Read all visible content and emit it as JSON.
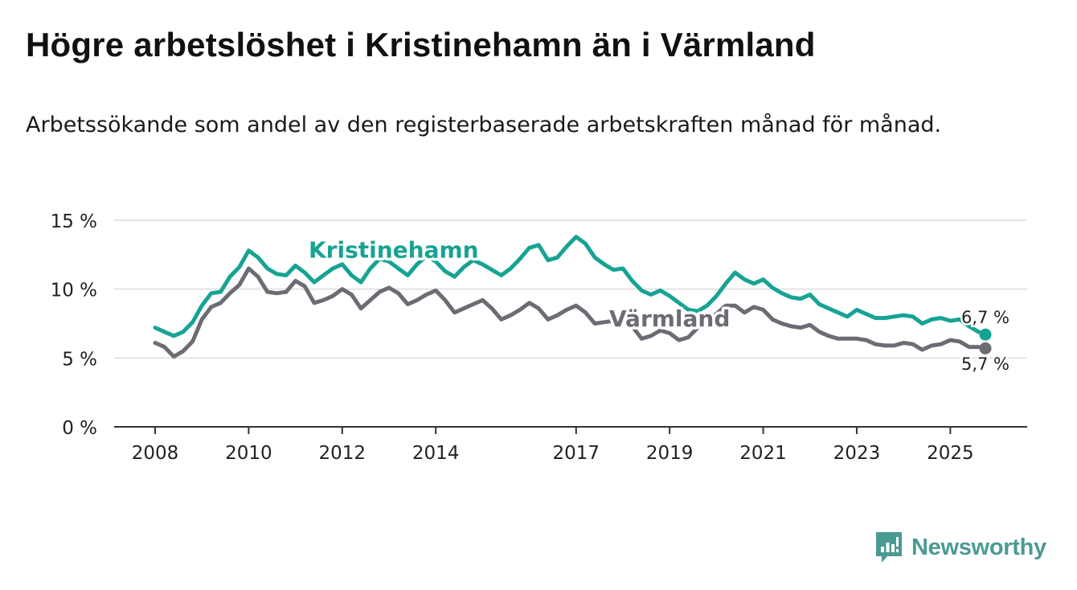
{
  "title": "Högre arbetslöshet i Kristinehamn än i Värmland",
  "subtitle": "Arbetssökande som andel av den registerbaserade arbetskraften månad för månad.",
  "brand": "Newsworthy",
  "colors": {
    "kristinehamn": "#17a394",
    "varmland": "#6d6b73",
    "grid": "#dddddd",
    "axis": "#333333",
    "brand": "#4a9a93"
  },
  "chart_data": {
    "type": "line",
    "title": "Högre arbetslöshet i Kristinehamn än i Värmland",
    "xlabel": "",
    "ylabel": "",
    "x_range": [
      2008,
      2025.75
    ],
    "ylim": [
      0,
      15
    ],
    "y_ticks": [
      0,
      5,
      10,
      15
    ],
    "y_tick_labels": [
      "0 %",
      "5 %",
      "10 %",
      "15 %"
    ],
    "x_ticks": [
      2008,
      2010,
      2012,
      2014,
      2017,
      2019,
      2021,
      2023,
      2025
    ],
    "x_tick_labels": [
      "2008",
      "2010",
      "2012",
      "2014",
      "2017",
      "2019",
      "2021",
      "2023",
      "2025"
    ],
    "grid": true,
    "series": [
      {
        "name": "Kristinehamn",
        "color": "#17a394",
        "label_position": [
          2013.1,
          12.3
        ],
        "end_label": "6,7 %",
        "end_value": 6.7,
        "x": [
          2008.0,
          2008.2,
          2008.4,
          2008.6,
          2008.8,
          2009.0,
          2009.2,
          2009.4,
          2009.6,
          2009.8,
          2010.0,
          2010.2,
          2010.4,
          2010.6,
          2010.8,
          2011.0,
          2011.2,
          2011.4,
          2011.6,
          2011.8,
          2012.0,
          2012.2,
          2012.4,
          2012.6,
          2012.8,
          2013.0,
          2013.2,
          2013.4,
          2013.6,
          2013.8,
          2014.0,
          2014.2,
          2014.4,
          2014.6,
          2014.8,
          2015.0,
          2015.2,
          2015.4,
          2015.6,
          2015.8,
          2016.0,
          2016.2,
          2016.4,
          2016.6,
          2016.8,
          2017.0,
          2017.2,
          2017.4,
          2017.6,
          2017.8,
          2018.0,
          2018.2,
          2018.4,
          2018.6,
          2018.8,
          2019.0,
          2019.2,
          2019.4,
          2019.6,
          2019.8,
          2020.0,
          2020.2,
          2020.4,
          2020.6,
          2020.8,
          2021.0,
          2021.2,
          2021.4,
          2021.6,
          2021.8,
          2022.0,
          2022.2,
          2022.4,
          2022.6,
          2022.8,
          2023.0,
          2023.2,
          2023.4,
          2023.6,
          2023.8,
          2024.0,
          2024.2,
          2024.4,
          2024.6,
          2024.8,
          2025.0,
          2025.2,
          2025.4,
          2025.6,
          2025.75
        ],
        "values": [
          7.2,
          6.9,
          6.6,
          6.9,
          7.6,
          8.8,
          9.7,
          9.8,
          10.9,
          11.6,
          12.8,
          12.3,
          11.5,
          11.1,
          11.0,
          11.7,
          11.2,
          10.5,
          11.0,
          11.5,
          11.8,
          11.0,
          10.5,
          11.5,
          12.2,
          12.0,
          11.5,
          11.0,
          11.8,
          12.4,
          12.0,
          11.3,
          10.9,
          11.6,
          12.1,
          11.8,
          11.4,
          11.0,
          11.5,
          12.2,
          13.0,
          13.2,
          12.1,
          12.3,
          13.1,
          13.8,
          13.3,
          12.3,
          11.8,
          11.4,
          11.5,
          10.6,
          9.9,
          9.6,
          9.9,
          9.5,
          9.0,
          8.5,
          8.4,
          8.8,
          9.5,
          10.4,
          11.2,
          10.7,
          10.4,
          10.7,
          10.1,
          9.7,
          9.4,
          9.3,
          9.6,
          8.9,
          8.6,
          8.3,
          8.0,
          8.5,
          8.2,
          7.9,
          7.9,
          8.0,
          8.1,
          8.0,
          7.5,
          7.8,
          7.9,
          7.7,
          7.8,
          7.3,
          6.9,
          6.7
        ]
      },
      {
        "name": "Värmland",
        "color": "#6d6b73",
        "label_position": [
          2019.0,
          7.3
        ],
        "end_label": "5,7 %",
        "end_value": 5.7,
        "x": [
          2008.0,
          2008.2,
          2008.4,
          2008.6,
          2008.8,
          2009.0,
          2009.2,
          2009.4,
          2009.6,
          2009.8,
          2010.0,
          2010.2,
          2010.4,
          2010.6,
          2010.8,
          2011.0,
          2011.2,
          2011.4,
          2011.6,
          2011.8,
          2012.0,
          2012.2,
          2012.4,
          2012.6,
          2012.8,
          2013.0,
          2013.2,
          2013.4,
          2013.6,
          2013.8,
          2014.0,
          2014.2,
          2014.4,
          2014.6,
          2014.8,
          2015.0,
          2015.2,
          2015.4,
          2015.6,
          2015.8,
          2016.0,
          2016.2,
          2016.4,
          2016.6,
          2016.8,
          2017.0,
          2017.2,
          2017.4,
          2017.6,
          2017.8,
          2018.0,
          2018.2,
          2018.4,
          2018.6,
          2018.8,
          2019.0,
          2019.2,
          2019.4,
          2019.6,
          2019.8,
          2020.0,
          2020.2,
          2020.4,
          2020.6,
          2020.8,
          2021.0,
          2021.2,
          2021.4,
          2021.6,
          2021.8,
          2022.0,
          2022.2,
          2022.4,
          2022.6,
          2022.8,
          2023.0,
          2023.2,
          2023.4,
          2023.6,
          2023.8,
          2024.0,
          2024.2,
          2024.4,
          2024.6,
          2024.8,
          2025.0,
          2025.2,
          2025.4,
          2025.6,
          2025.75
        ],
        "values": [
          6.1,
          5.8,
          5.1,
          5.5,
          6.2,
          7.8,
          8.7,
          9.0,
          9.7,
          10.3,
          11.5,
          10.9,
          9.8,
          9.7,
          9.8,
          10.6,
          10.2,
          9.0,
          9.2,
          9.5,
          10.0,
          9.6,
          8.6,
          9.2,
          9.8,
          10.1,
          9.7,
          8.9,
          9.2,
          9.6,
          9.9,
          9.2,
          8.3,
          8.6,
          8.9,
          9.2,
          8.6,
          7.8,
          8.1,
          8.5,
          9.0,
          8.6,
          7.8,
          8.1,
          8.5,
          8.8,
          8.3,
          7.5,
          7.6,
          7.7,
          7.8,
          7.3,
          6.4,
          6.6,
          7.0,
          6.8,
          6.3,
          6.5,
          7.2,
          7.8,
          8.2,
          8.8,
          8.8,
          8.3,
          8.7,
          8.5,
          7.8,
          7.5,
          7.3,
          7.2,
          7.4,
          6.9,
          6.6,
          6.4,
          6.4,
          6.4,
          6.3,
          6.0,
          5.9,
          5.9,
          6.1,
          6.0,
          5.6,
          5.9,
          6.0,
          6.3,
          6.2,
          5.8,
          5.8,
          5.7
        ]
      }
    ]
  }
}
